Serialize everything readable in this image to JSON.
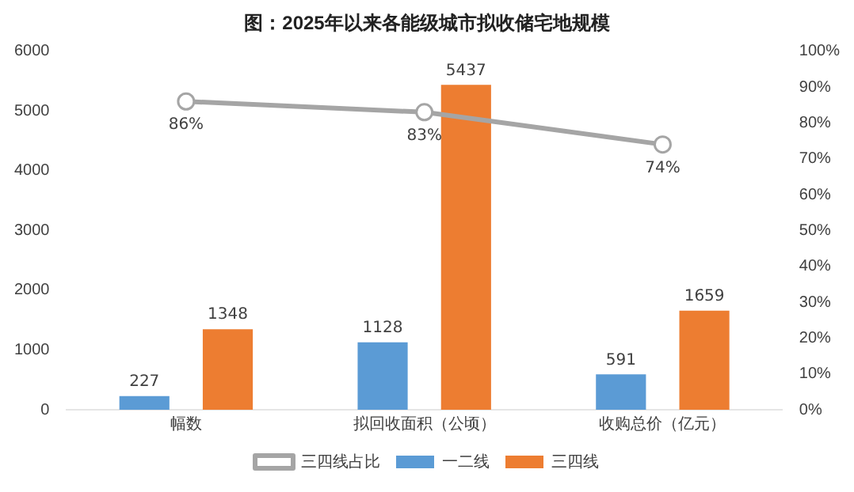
{
  "chart_data": {
    "type": "bar",
    "title": "图：2025年以来各能级城市拟收储宅地规模",
    "categories": [
      "幅数",
      "拟回收面积（公顷）",
      "收购总价（亿元）"
    ],
    "series": [
      {
        "name": "一二线",
        "color": "#5b9bd5",
        "values": [
          227,
          1128,
          591
        ],
        "value_labels": [
          "227",
          "1128",
          "591"
        ]
      },
      {
        "name": "三四线",
        "color": "#ed7d31",
        "values": [
          1348,
          5437,
          1659
        ],
        "value_labels": [
          "1348",
          "5437",
          "1659"
        ]
      },
      {
        "name": "三四线占比",
        "type": "line",
        "axis": "y2",
        "color": "#a5a5a5",
        "values": [
          86,
          83,
          74
        ],
        "value_labels": [
          "86%",
          "83%",
          "74%"
        ]
      }
    ],
    "ylim": [
      0,
      6000
    ],
    "yticks": [
      0,
      1000,
      2000,
      3000,
      4000,
      5000,
      6000
    ],
    "y2lim": [
      0,
      100
    ],
    "y2ticks": [
      {
        "value": 0,
        "label": "0%"
      },
      {
        "value": 10,
        "label": "10%"
      },
      {
        "value": 20,
        "label": "20%"
      },
      {
        "value": 30,
        "label": "30%"
      },
      {
        "value": 40,
        "label": "40%"
      },
      {
        "value": 50,
        "label": "50%"
      },
      {
        "value": 60,
        "label": "60%"
      },
      {
        "value": 70,
        "label": "70%"
      },
      {
        "value": 80,
        "label": "80%"
      },
      {
        "value": 90,
        "label": "90%"
      },
      {
        "value": 100,
        "label": "100%"
      }
    ],
    "grid": false,
    "legend": "bottom",
    "marker": "circle"
  }
}
